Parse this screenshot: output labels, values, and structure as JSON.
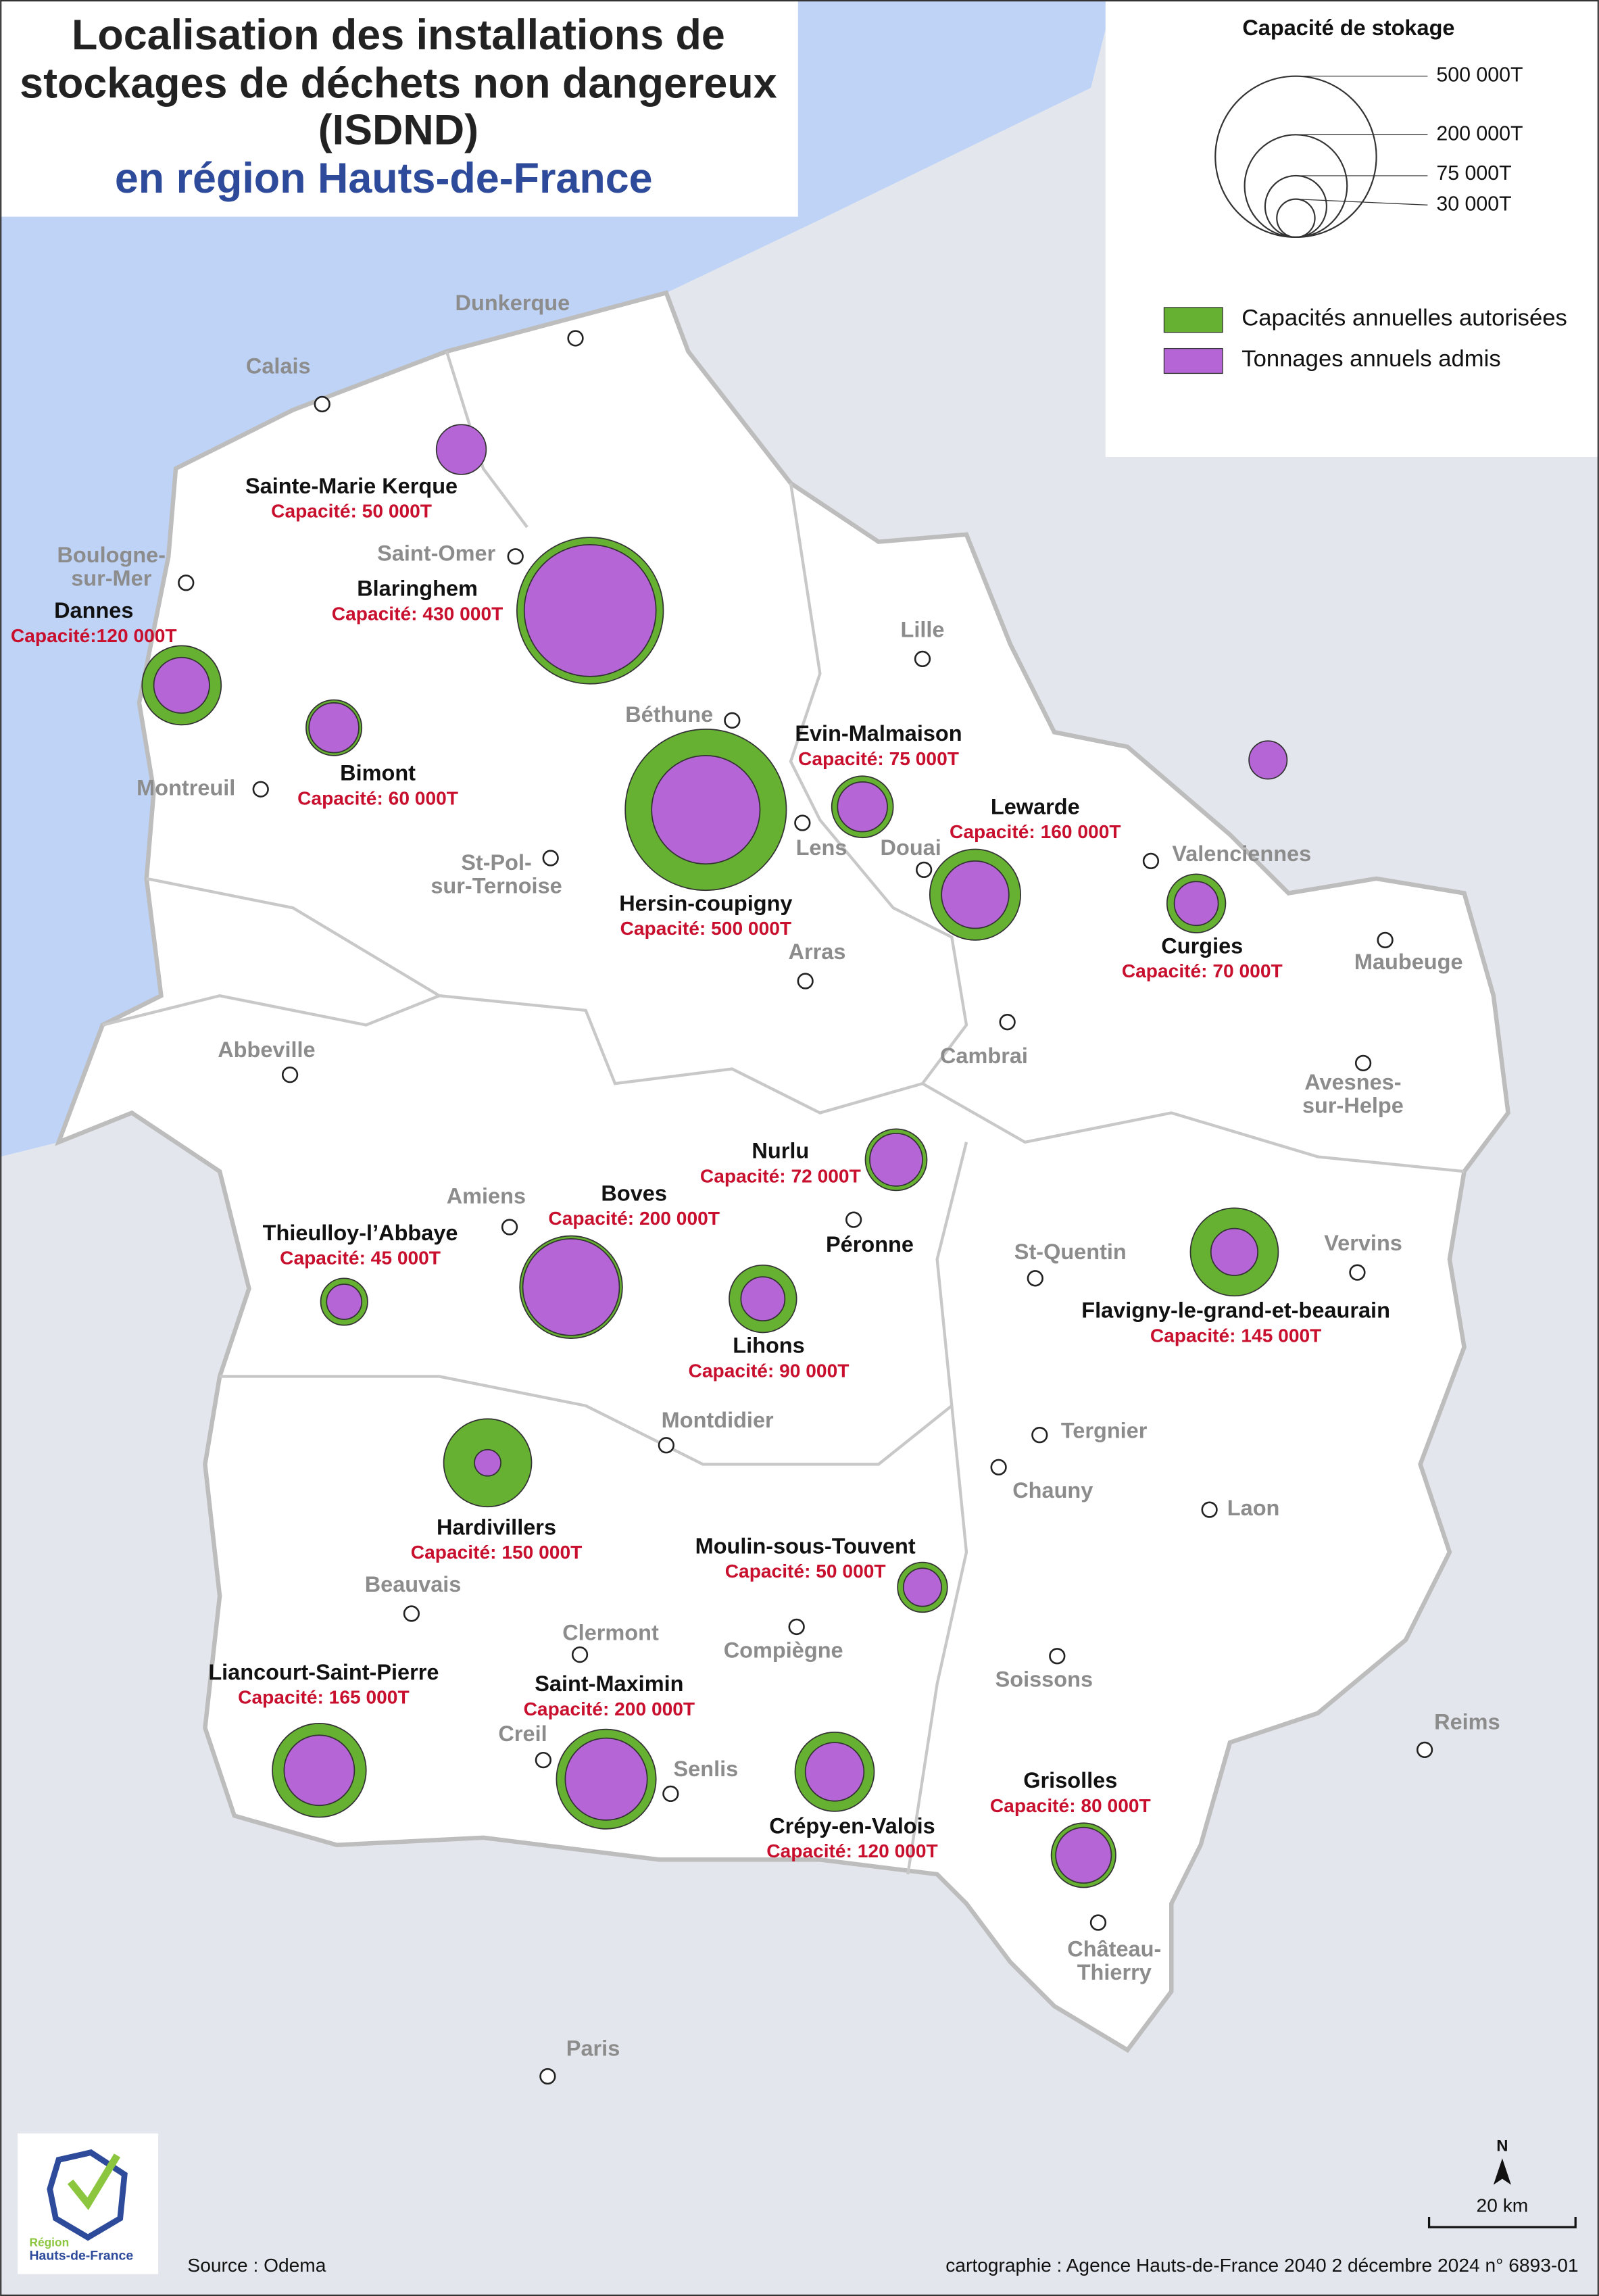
{
  "title": {
    "lines": [
      "Localisation des installations de",
      "stockages de déchets non dangereux",
      "(ISDND)"
    ],
    "subtitle": "en région Hauts-de-France"
  },
  "legend": {
    "title": "Capacité de stokage",
    "sizes": [
      "500 000T",
      "200 000T",
      "75 000T",
      "30 000T"
    ],
    "items": [
      "Capacités annuelles autorisées",
      "Tonnages annuels admis"
    ]
  },
  "sites": [
    {
      "name": "Sainte-Marie Kerque",
      "capacity": "Capacité: 50 000T"
    },
    {
      "name": "Blaringhem",
      "capacity": "Capacité: 430 000T"
    },
    {
      "name": "Dannes",
      "capacity": "Capacité:120 000T"
    },
    {
      "name": "Bimont",
      "capacity": "Capacité: 60 000T"
    },
    {
      "name": "Hersin-coupigny",
      "capacity": "Capacité: 500 000T"
    },
    {
      "name": "Evin-Malmaison",
      "capacity": "Capacité: 75 000T"
    },
    {
      "name": "Lewarde",
      "capacity": "Capacité: 160 000T"
    },
    {
      "name": "Curgies",
      "capacity": "Capacité: 70 000T"
    },
    {
      "name": "Nurlu",
      "capacity": "Capacité: 72 000T"
    },
    {
      "name": "Boves",
      "capacity": "Capacité: 200 000T"
    },
    {
      "name": "Thieulloy-l’Abbaye",
      "capacity": "Capacité: 45 000T"
    },
    {
      "name": "Lihons",
      "capacity": "Capacité: 90 000T"
    },
    {
      "name": "Flavigny-le-grand-et-beaurain",
      "capacity": "Capacité: 145 000T"
    },
    {
      "name": "Hardivillers",
      "capacity": "Capacité: 150 000T"
    },
    {
      "name": "Moulin-sous-Touvent",
      "capacity": "Capacité: 50 000T"
    },
    {
      "name": "Liancourt-Saint-Pierre",
      "capacity": "Capacité: 165 000T"
    },
    {
      "name": "Saint-Maximin",
      "capacity": "Capacité: 200 000T"
    },
    {
      "name": "Crépy-en-Valois",
      "capacity": "Capacité: 120 000T"
    },
    {
      "name": "Grisolles",
      "capacity": "Capacité: 80 000T"
    }
  ],
  "cities": [
    {
      "lines": [
        "Dunkerque"
      ]
    },
    {
      "lines": [
        "Calais"
      ]
    },
    {
      "lines": [
        "Saint-Omer"
      ]
    },
    {
      "lines": [
        "Boulogne-",
        "sur-Mer"
      ]
    },
    {
      "lines": [
        "Lille"
      ]
    },
    {
      "lines": [
        "Béthune"
      ]
    },
    {
      "lines": [
        "Montreuil"
      ]
    },
    {
      "lines": [
        "Lens"
      ]
    },
    {
      "lines": [
        "Douai"
      ]
    },
    {
      "lines": [
        "Valenciennes"
      ]
    },
    {
      "lines": [
        "St-Pol-",
        "sur-Ternoise"
      ]
    },
    {
      "lines": [
        "Arras"
      ]
    },
    {
      "lines": [
        "Maubeuge"
      ]
    },
    {
      "lines": [
        "Cambrai"
      ]
    },
    {
      "lines": [
        "Abbeville"
      ]
    },
    {
      "lines": [
        "Avesnes-",
        "sur-Helpe"
      ]
    },
    {
      "lines": [
        "Amiens"
      ]
    },
    {
      "lines": [
        "Péronne"
      ]
    },
    {
      "lines": [
        "St-Quentin"
      ]
    },
    {
      "lines": [
        "Vervins"
      ]
    },
    {
      "lines": [
        "Montdidier"
      ]
    },
    {
      "lines": [
        "Tergnier"
      ]
    },
    {
      "lines": [
        "Chauny"
      ]
    },
    {
      "lines": [
        "Laon"
      ]
    },
    {
      "lines": [
        "Beauvais"
      ]
    },
    {
      "lines": [
        "Clermont"
      ]
    },
    {
      "lines": [
        "Compiègne"
      ]
    },
    {
      "lines": [
        "Soissons"
      ]
    },
    {
      "lines": [
        "Reims"
      ]
    },
    {
      "lines": [
        "Creil"
      ]
    },
    {
      "lines": [
        "Senlis"
      ]
    },
    {
      "lines": [
        "Château-",
        "Thierry"
      ]
    },
    {
      "lines": [
        "Paris"
      ]
    }
  ],
  "footer": {
    "source": "Source : Odema",
    "credit": "cartographie : Agence Hauts-de-France 2040  2 décembre 2024   n° 6893-01",
    "scale": "20 km",
    "north": "N",
    "logo": [
      "Région",
      "Hauts-de-France"
    ]
  }
}
